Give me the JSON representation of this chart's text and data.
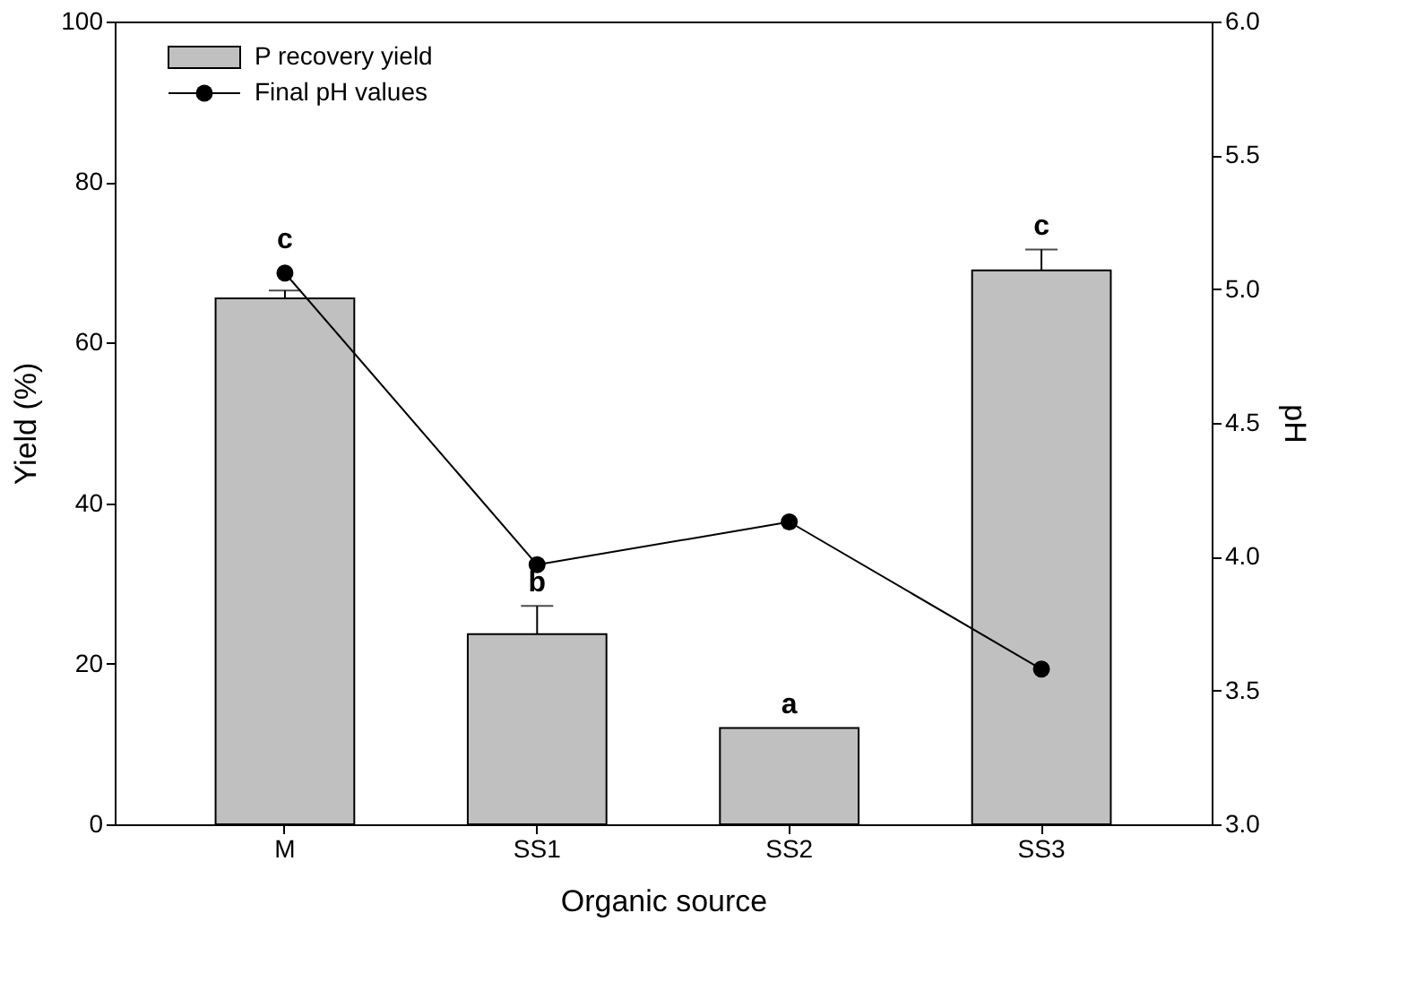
{
  "chart_data": {
    "type": "bar",
    "xlabel": "Organic source",
    "ylabel": "Yield (%)",
    "y2label": "pH",
    "categories": [
      "M",
      "SS1",
      "SS2",
      "SS3"
    ],
    "series": [
      {
        "name": "P recovery yield",
        "color": "#c0c0c0",
        "values": [
          65.5,
          23.7,
          12.0,
          69.0
        ],
        "errors": [
          [
            65.5,
            66.5
          ],
          [
            23.7,
            27.2
          ],
          null,
          [
            69.0,
            71.6
          ]
        ]
      },
      {
        "name": "Final pH values",
        "type": "line",
        "axis": "y2",
        "color": "#000000",
        "values": [
          5.06,
          3.97,
          4.13,
          3.58
        ]
      }
    ],
    "ylim": [
      0,
      100
    ],
    "yticks": [
      0,
      20,
      40,
      60,
      80,
      100
    ],
    "y2lim": [
      3.0,
      6.0
    ],
    "y2ticks": [
      {
        "value": 3,
        "label": "3.0"
      },
      3.5,
      {
        "value": 4,
        "label": "4.0"
      },
      4.5,
      {
        "value": 5,
        "label": "5.0"
      },
      5.5,
      {
        "value": 6,
        "label": "6.0"
      }
    ],
    "annotations": [
      "c",
      "b",
      "a",
      "c"
    ],
    "legend": "top left",
    "marker": "circle",
    "line_style": "solid",
    "grid": false
  }
}
